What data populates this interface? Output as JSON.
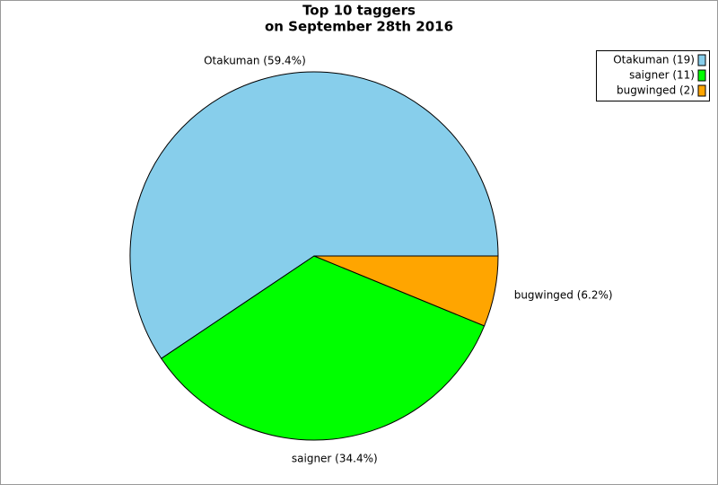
{
  "chart_data": {
    "type": "pie",
    "title": "Top 10 taggers",
    "subtitle": "on September 28th 2016",
    "categories": [
      "Otakuman",
      "saigner",
      "bugwinged"
    ],
    "values": [
      59.4,
      34.4,
      6.2
    ],
    "value_labels": [
      "Otakuman (59.4%)",
      "saigner (34.4%)",
      "bugwinged (6.2%)"
    ],
    "legend_labels": [
      "Otakuman (19)",
      "saigner (11)",
      "bugwinged (2)"
    ],
    "colors": [
      "#87ceeb",
      "#00ff00",
      "#ffa500"
    ],
    "legend": "top-right"
  }
}
